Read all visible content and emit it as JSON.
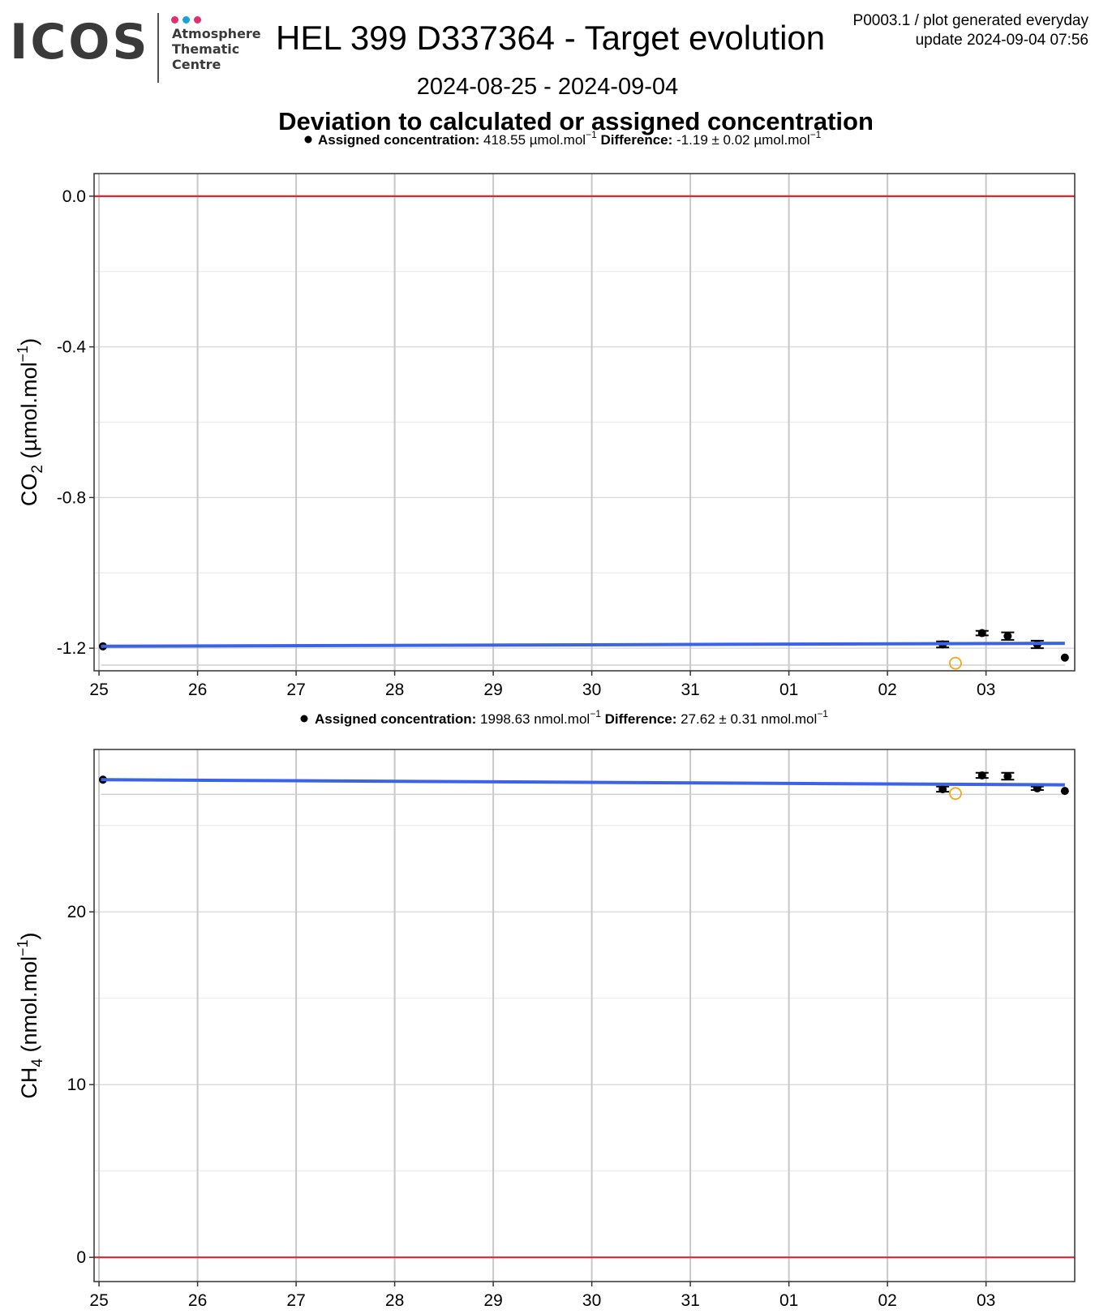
{
  "logo": {
    "word": "ICOS",
    "lines": [
      "Atmosphere",
      "Thematic",
      "Centre"
    ],
    "dot_colors": [
      "#e0306f",
      "#17a2d8",
      "#e0306f"
    ]
  },
  "header": {
    "title": "HEL 399 D337364 - Target evolution",
    "meta_line1": "P0003.1 / plot generated everyday",
    "meta_line2": "update  2024-09-04 07:56",
    "date_range": "2024-08-25 - 2024-09-04",
    "subtitle": "Deviation to calculated or assigned concentration"
  },
  "chart_data": [
    {
      "type": "scatter",
      "ylabel_main": "CO",
      "ylabel_sub": "2",
      "ylabel_unit_pre": " (µmol.mol",
      "ylabel_unit_sup": "−1",
      "ylabel_unit_post": ")",
      "legend": {
        "label1": "Assigned concentration:",
        "value1": " 418.55 µmol.mol",
        "label2": "Difference:",
        "value2": " -1.19 ± 0.02 µmol.mol",
        "sup": "−1"
      },
      "x_ticks": [
        "25",
        "26",
        "27",
        "28",
        "29",
        "30",
        "31",
        "01",
        "02",
        "03"
      ],
      "x_tick_pos": [
        0,
        1,
        2,
        3,
        4,
        5,
        6,
        7,
        8,
        9
      ],
      "xlim": [
        -0.05,
        9.9
      ],
      "y_ticks": [
        0.0,
        -0.4,
        -0.8,
        -1.2
      ],
      "y_tick_labels": [
        "0.0",
        "-0.4",
        "-0.8",
        "-1.2"
      ],
      "ylim": [
        -1.26,
        0.06
      ],
      "reference_line": 0,
      "reference_color": "#e3262b",
      "trend": {
        "x": [
          0.02,
          9.8
        ],
        "y": [
          -1.195,
          -1.187
        ],
        "color": "#3b63e8"
      },
      "flat_line": {
        "x": [
          0.02,
          9.8
        ],
        "y": [
          -1.245,
          -1.245
        ]
      },
      "points": [
        {
          "x": 0.04,
          "y": -1.195,
          "err": 0.0
        },
        {
          "x": 8.56,
          "y": -1.19,
          "err": 0.008
        },
        {
          "x": 8.96,
          "y": -1.16,
          "err": 0.006
        },
        {
          "x": 9.22,
          "y": -1.168,
          "err": 0.01
        },
        {
          "x": 9.52,
          "y": -1.19,
          "err": 0.01
        },
        {
          "x": 9.8,
          "y": -1.225,
          "err": 0.0
        }
      ],
      "outliers": [
        {
          "x": 8.69,
          "y": -1.24,
          "color": "#f2a81d"
        }
      ]
    },
    {
      "type": "scatter",
      "ylabel_main": "CH",
      "ylabel_sub": "4",
      "ylabel_unit_pre": " (nmol.mol",
      "ylabel_unit_sup": "−1",
      "ylabel_unit_post": ")",
      "legend": {
        "label1": "Assigned concentration:",
        "value1": " 1998.63 nmol.mol",
        "label2": "Difference:",
        "value2": " 27.62 ± 0.31 nmol.mol",
        "sup": "−1"
      },
      "x_ticks": [
        "25",
        "26",
        "27",
        "28",
        "29",
        "30",
        "31",
        "01",
        "02",
        "03"
      ],
      "x_tick_pos": [
        0,
        1,
        2,
        3,
        4,
        5,
        6,
        7,
        8,
        9
      ],
      "xlim": [
        -0.05,
        9.9
      ],
      "y_ticks": [
        0,
        10,
        20
      ],
      "y_tick_labels": [
        "0",
        "10",
        "20"
      ],
      "ylim": [
        -1.4,
        29.4
      ],
      "reference_line": 0,
      "reference_color": "#e3262b",
      "trend": {
        "x": [
          0.02,
          9.8
        ],
        "y": [
          27.65,
          27.35
        ],
        "color": "#3b63e8"
      },
      "flat_line": {
        "x": [
          0.02,
          9.8
        ],
        "y": [
          26.8,
          26.8
        ]
      },
      "points": [
        {
          "x": 0.04,
          "y": 27.65,
          "err": 0.0
        },
        {
          "x": 8.56,
          "y": 27.1,
          "err": 0.15
        },
        {
          "x": 8.96,
          "y": 27.9,
          "err": 0.15
        },
        {
          "x": 9.22,
          "y": 27.85,
          "err": 0.2
        },
        {
          "x": 9.52,
          "y": 27.15,
          "err": 0.1
        },
        {
          "x": 9.8,
          "y": 27.0,
          "err": 0.0
        }
      ],
      "outliers": [
        {
          "x": 8.69,
          "y": 26.85,
          "color": "#f2a81d"
        }
      ]
    }
  ]
}
